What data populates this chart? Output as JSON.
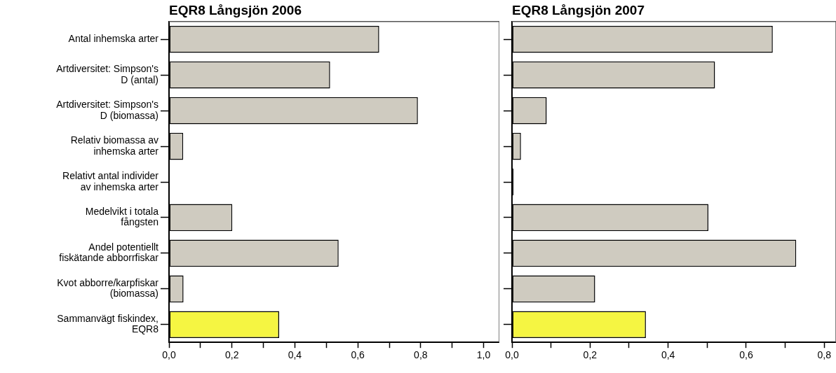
{
  "chart_data": [
    {
      "type": "bar",
      "orientation": "horizontal",
      "title": "EQR8 Långsjön 2006",
      "categories": [
        "Antal inhemska arter",
        "Artdiversitet: Simpson's D (antal)",
        "Artdiversitet: Simpson's D (biomassa)",
        "Relativ biomassa av inhemska arter",
        "Relativt antal individer av inhemska arter",
        "Medelvikt i totala fångsten",
        "Andel potentiellt fiskätande abborrfiskar",
        "Kvot abborre/karpfiskar (biomassa)",
        "Sammanvägt fiskindex, EQR8"
      ],
      "values": [
        0.668,
        0.512,
        0.791,
        0.045,
        0,
        0.201,
        0.539,
        0.046,
        0.35
      ],
      "colors": [
        "#cfcbc0",
        "#cfcbc0",
        "#cfcbc0",
        "#cfcbc0",
        "#cfcbc0",
        "#cfcbc0",
        "#cfcbc0",
        "#cfcbc0",
        "#f5f542"
      ],
      "xlim": [
        0,
        1.05
      ],
      "xticks": [
        {
          "value": 0,
          "label": "0,0"
        },
        {
          "value": 0.1,
          "label": null
        },
        {
          "value": 0.2,
          "label": "0,2"
        },
        {
          "value": 0.3,
          "label": null
        },
        {
          "value": 0.4,
          "label": "0,4"
        },
        {
          "value": 0.5,
          "label": null
        },
        {
          "value": 0.6,
          "label": "0,6"
        },
        {
          "value": 0.7,
          "label": null
        },
        {
          "value": 0.8,
          "label": "0,8"
        },
        {
          "value": 0.9,
          "label": null
        },
        {
          "value": 1,
          "label": "1,0"
        }
      ],
      "grid": false,
      "legend": false
    },
    {
      "type": "bar",
      "orientation": "horizontal",
      "title": "EQR8 Långsjön 2007",
      "categories": [
        null,
        null,
        null,
        null,
        null,
        null,
        null,
        null,
        null
      ],
      "values": [
        0.668,
        0.52,
        0.089,
        0.023,
        0.004,
        0.503,
        0.728,
        0.213,
        0.343
      ],
      "colors": [
        "#cfcbc0",
        "#cfcbc0",
        "#cfcbc0",
        "#cfcbc0",
        "#000000",
        "#cfcbc0",
        "#cfcbc0",
        "#cfcbc0",
        "#f5f542"
      ],
      "xlim": [
        0,
        0.83
      ],
      "xticks": [
        {
          "value": 0,
          "label": "0,0"
        },
        {
          "value": 0.1,
          "label": null
        },
        {
          "value": 0.2,
          "label": "0,2"
        },
        {
          "value": 0.3,
          "label": null
        },
        {
          "value": 0.4,
          "label": "0,4"
        },
        {
          "value": 0.5,
          "label": null
        },
        {
          "value": 0.6,
          "label": "0,6"
        },
        {
          "value": 0.7,
          "label": null
        },
        {
          "value": 0.8,
          "label": "0,8"
        }
      ],
      "tick_labels": "x",
      "grid": false,
      "legend": false
    }
  ]
}
